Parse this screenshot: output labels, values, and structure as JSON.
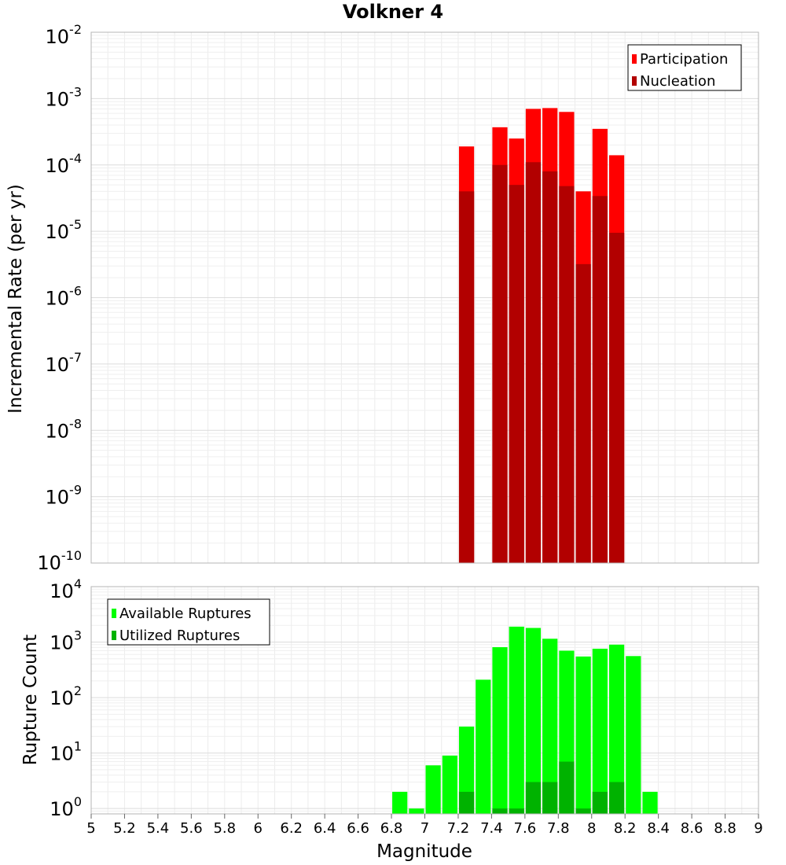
{
  "chart_data": [
    {
      "type": "bar",
      "title": "Volkner 4",
      "ylabel": "Incremental Rate (per yr)",
      "yscale": "log",
      "ylim": [
        1e-10,
        0.01
      ],
      "y_tick_base": "10",
      "y_tick_exponents": [
        "-10",
        "-9",
        "-8",
        "-7",
        "-6",
        "-5",
        "-4",
        "-3",
        "-2"
      ],
      "xlim": [
        5,
        9
      ],
      "legend_position": "top-right",
      "grid": true,
      "series": [
        {
          "name": "Participation",
          "color": "#ff0000",
          "points": [
            {
              "x": 7.25,
              "y": 0.00019
            },
            {
              "x": 7.45,
              "y": 0.00037
            },
            {
              "x": 7.55,
              "y": 0.00025
            },
            {
              "x": 7.65,
              "y": 0.0007
            },
            {
              "x": 7.75,
              "y": 0.00072
            },
            {
              "x": 7.85,
              "y": 0.00063
            },
            {
              "x": 7.95,
              "y": 4e-05
            },
            {
              "x": 8.05,
              "y": 0.00035
            },
            {
              "x": 8.15,
              "y": 0.00014
            }
          ]
        },
        {
          "name": "Nucleation",
          "color": "#b20000",
          "points": [
            {
              "x": 7.25,
              "y": 4e-05
            },
            {
              "x": 7.45,
              "y": 0.0001
            },
            {
              "x": 7.55,
              "y": 5e-05
            },
            {
              "x": 7.65,
              "y": 0.00011
            },
            {
              "x": 7.75,
              "y": 8e-05
            },
            {
              "x": 7.85,
              "y": 4.8e-05
            },
            {
              "x": 7.95,
              "y": 3.2e-06
            },
            {
              "x": 8.05,
              "y": 3.4e-05
            },
            {
              "x": 8.15,
              "y": 9.5e-06
            }
          ]
        }
      ]
    },
    {
      "type": "bar",
      "xlabel": "Magnitude",
      "ylabel": "Rupture Count",
      "yscale": "log",
      "ylim": [
        0.8,
        10000
      ],
      "y_tick_base": "10",
      "y_tick_values": [
        1,
        10,
        100,
        1000,
        10000
      ],
      "y_tick_exponents": [
        "0",
        "1",
        "2",
        "3",
        "4"
      ],
      "xlim": [
        5,
        9
      ],
      "x_ticks": [
        "5",
        "5.2",
        "5.4",
        "5.6",
        "5.8",
        "6",
        "6.2",
        "6.4",
        "6.6",
        "6.8",
        "7",
        "7.2",
        "7.4",
        "7.6",
        "7.8",
        "8",
        "8.2",
        "8.4",
        "8.6",
        "8.8",
        "9"
      ],
      "legend_position": "top-left",
      "grid": true,
      "series": [
        {
          "name": "Available Ruptures",
          "color": "#00ff00",
          "points": [
            {
              "x": 6.85,
              "y": 2
            },
            {
              "x": 6.95,
              "y": 1
            },
            {
              "x": 7.05,
              "y": 6
            },
            {
              "x": 7.15,
              "y": 9
            },
            {
              "x": 7.25,
              "y": 30
            },
            {
              "x": 7.35,
              "y": 210
            },
            {
              "x": 7.45,
              "y": 810
            },
            {
              "x": 7.55,
              "y": 1900
            },
            {
              "x": 7.65,
              "y": 1800
            },
            {
              "x": 7.75,
              "y": 1150
            },
            {
              "x": 7.85,
              "y": 700
            },
            {
              "x": 7.95,
              "y": 550
            },
            {
              "x": 8.05,
              "y": 760
            },
            {
              "x": 8.15,
              "y": 900
            },
            {
              "x": 8.25,
              "y": 560
            },
            {
              "x": 8.35,
              "y": 2
            }
          ]
        },
        {
          "name": "Utilized Ruptures",
          "color": "#00b200",
          "points": [
            {
              "x": 7.25,
              "y": 2
            },
            {
              "x": 7.45,
              "y": 1
            },
            {
              "x": 7.55,
              "y": 1
            },
            {
              "x": 7.65,
              "y": 3
            },
            {
              "x": 7.75,
              "y": 3
            },
            {
              "x": 7.85,
              "y": 7
            },
            {
              "x": 7.95,
              "y": 1
            },
            {
              "x": 8.05,
              "y": 2
            },
            {
              "x": 8.15,
              "y": 3
            }
          ]
        }
      ]
    }
  ]
}
